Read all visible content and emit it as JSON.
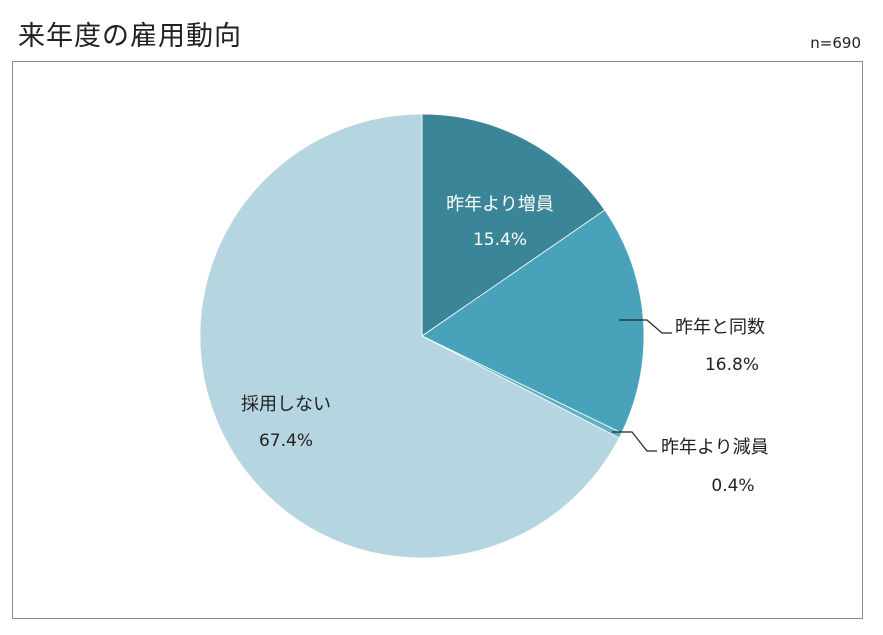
{
  "title": "来年度の雇用動向",
  "n_label": "n=690",
  "chart_data": {
    "type": "pie",
    "title": "来年度の雇用動向",
    "n": 690,
    "slices": [
      {
        "label": "昨年より増員",
        "value": 15.4,
        "value_label": "15.4%",
        "color": "#3a8597"
      },
      {
        "label": "昨年と同数",
        "value": 16.8,
        "value_label": "16.8%",
        "color": "#48a3ba"
      },
      {
        "label": "昨年より減員",
        "value": 0.4,
        "value_label": "0.4%",
        "color": "#5fb1c3"
      },
      {
        "label": "採用しない",
        "value": 67.4,
        "value_label": "67.4%",
        "color": "#b5d5e0"
      }
    ]
  }
}
